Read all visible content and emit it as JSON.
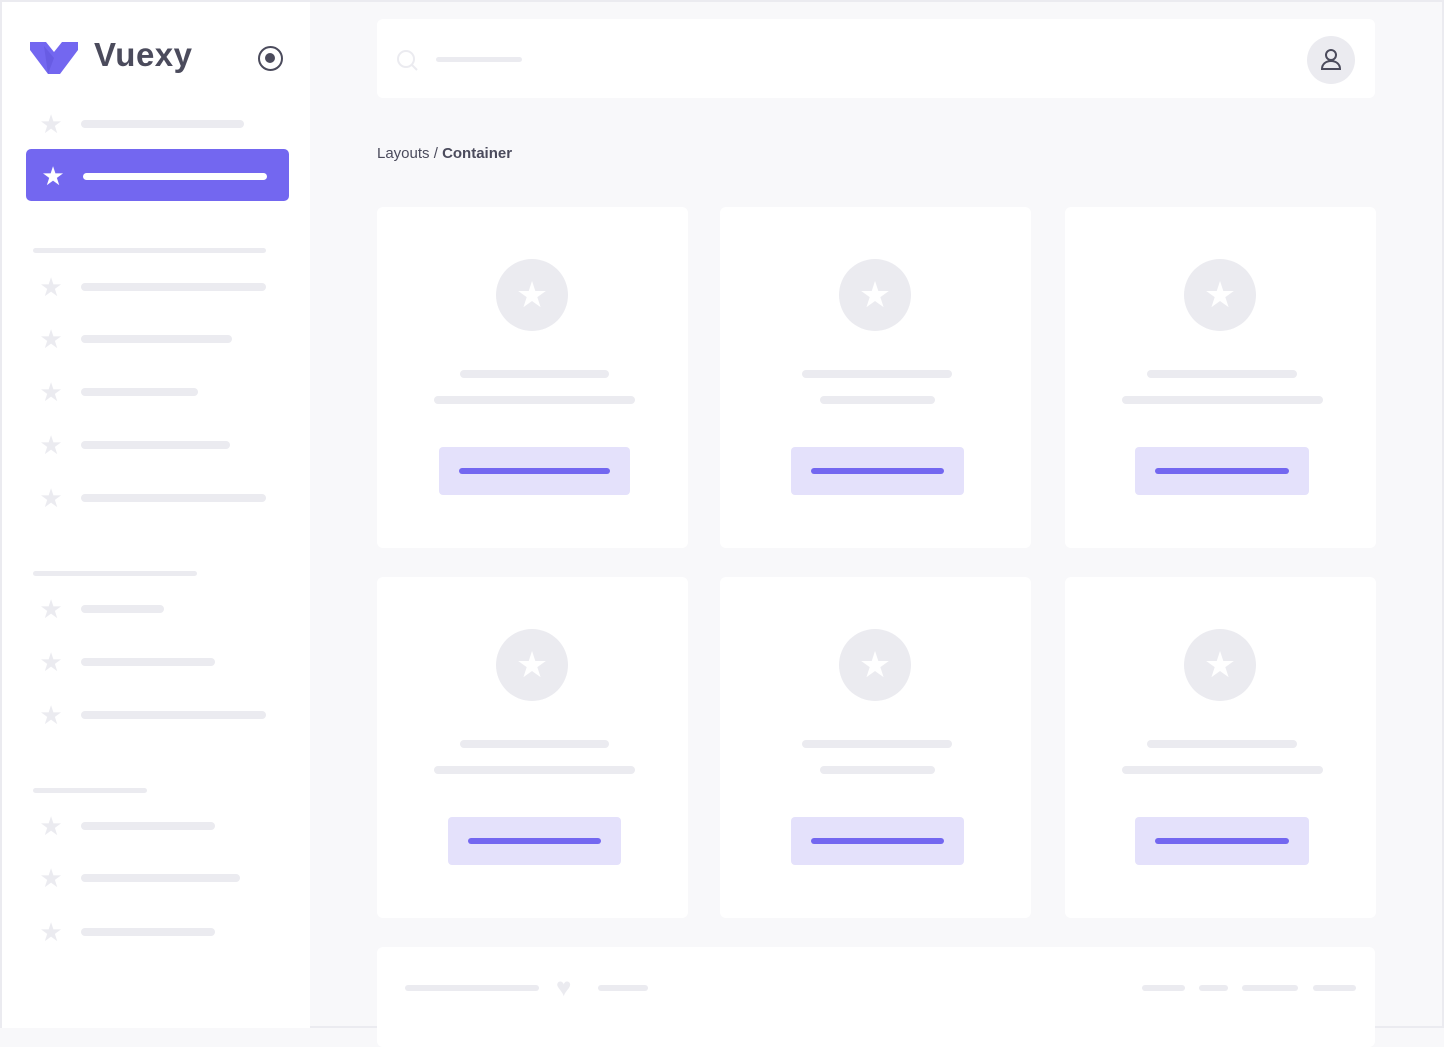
{
  "brand": {
    "name": "Vuexy",
    "color": "#7367f0"
  },
  "sidebar": {
    "toggle_icon": "radio-circle-icon",
    "item_icon": "star-icon",
    "active_index": 1
  },
  "header": {
    "search_icon": "search-icon",
    "avatar_icon": "user-icon"
  },
  "breadcrumb": {
    "parent": "Layouts",
    "separator": " / ",
    "current": "Container"
  },
  "cards": {
    "count": 6,
    "icon": "star-icon"
  },
  "footer": {
    "icon": "heart-icon"
  },
  "colors": {
    "accent": "#7367f0",
    "accent_light": "#e4e1fb",
    "skeleton": "#ebebf0",
    "background": "#f8f8fa"
  }
}
